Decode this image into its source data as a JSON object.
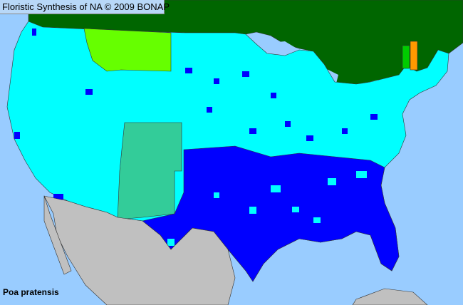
{
  "header": {
    "title": "Floristic Synthesis of NA © 2009 BONAP"
  },
  "species_label": "Poa pratensis",
  "colors": {
    "ocean": "#99ccff",
    "canada": "#006600",
    "mexico": "#c0c0c0",
    "present_native": "#00ffff",
    "county_dense": "#0000ff",
    "montana": "#66ff00",
    "southwest": "#33cc99",
    "vermont": "#00cc00",
    "new_hampshire": "#ff9900"
  }
}
